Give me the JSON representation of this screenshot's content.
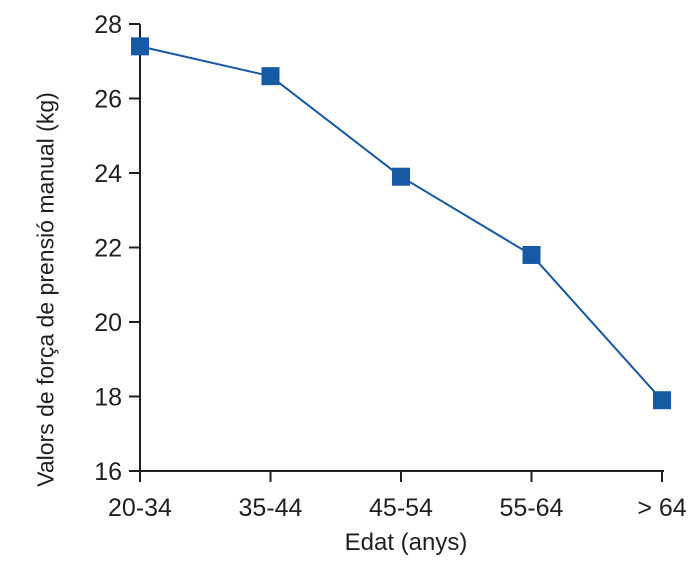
{
  "chart_data": {
    "type": "line",
    "title": "",
    "categories": [
      "20-34",
      "35-44",
      "45-54",
      "55-64",
      "> 64"
    ],
    "values": [
      27.4,
      26.6,
      23.9,
      21.8,
      17.9
    ],
    "xlabel": "Edat (anys)",
    "ylabel": "Valors de força de prensió manual (kg)",
    "ylim": [
      16,
      28
    ],
    "yticks": [
      16,
      18,
      20,
      22,
      24,
      26,
      28
    ],
    "grid": false,
    "legend": false,
    "marker": "square",
    "colors": {
      "series": "#1659a5",
      "axis": "#231f20",
      "text": "#231f20",
      "background": "#ffffff"
    }
  }
}
